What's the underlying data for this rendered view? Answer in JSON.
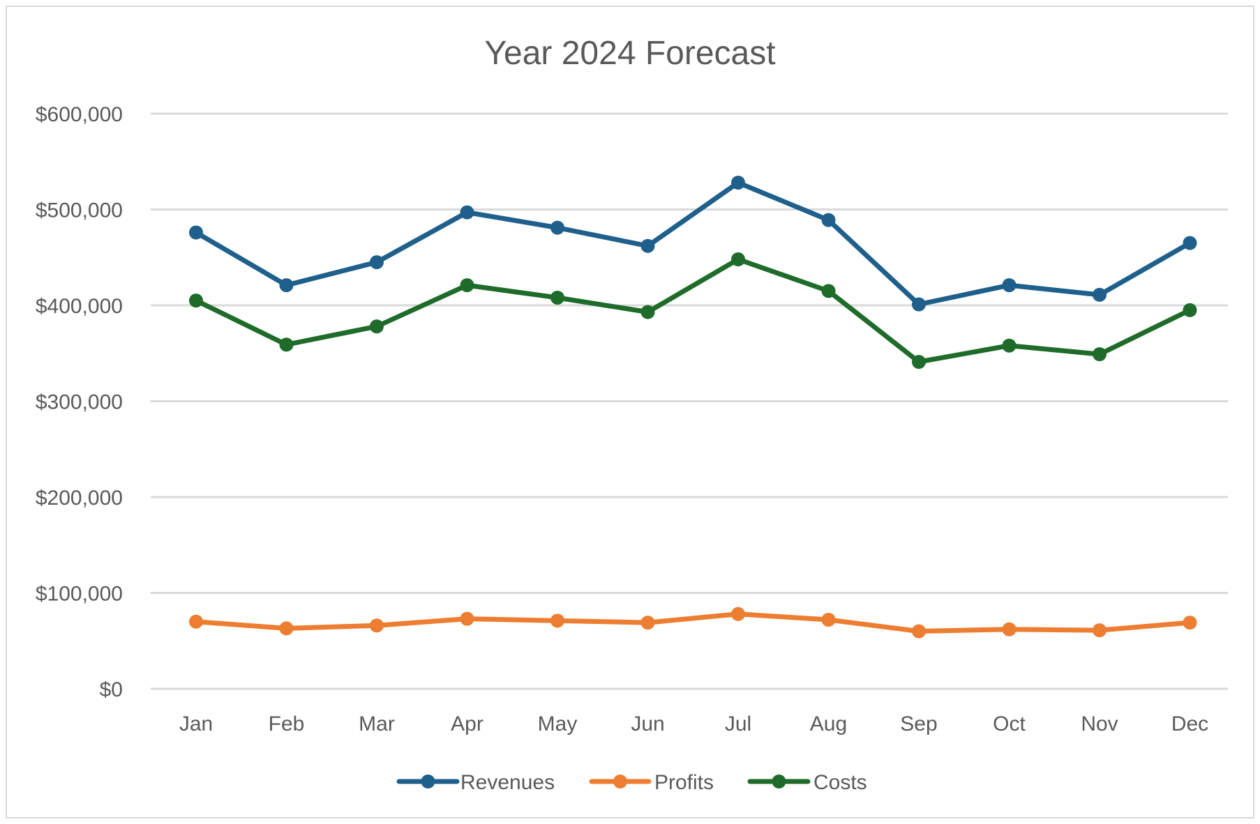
{
  "chart_data": {
    "type": "line",
    "title": "Year 2024 Forecast",
    "xlabel": "",
    "ylabel": "",
    "categories": [
      "Jan",
      "Feb",
      "Mar",
      "Apr",
      "May",
      "Jun",
      "Jul",
      "Aug",
      "Sep",
      "Oct",
      "Nov",
      "Dec"
    ],
    "ylim": [
      0,
      600000
    ],
    "y_ticks": [
      0,
      100000,
      200000,
      300000,
      400000,
      500000,
      600000
    ],
    "y_tick_labels": [
      "$0",
      "$100,000",
      "$200,000",
      "$300,000",
      "$400,000",
      "$500,000",
      "$600,000"
    ],
    "grid": true,
    "legend_position": "bottom",
    "markers": true,
    "series": [
      {
        "name": "Revenues",
        "color": "#1f5f8b",
        "values": [
          476000,
          421000,
          445000,
          497000,
          481000,
          462000,
          528000,
          489000,
          401000,
          421000,
          411000,
          465000
        ]
      },
      {
        "name": "Profits",
        "color": "#ed7d31",
        "values": [
          70000,
          63000,
          66000,
          73000,
          71000,
          69000,
          78000,
          72000,
          60000,
          62000,
          61000,
          69000
        ]
      },
      {
        "name": "Costs",
        "color": "#1e6b2a",
        "values": [
          405000,
          359000,
          378000,
          421000,
          408000,
          393000,
          448000,
          415000,
          341000,
          358000,
          349000,
          395000
        ]
      }
    ]
  }
}
